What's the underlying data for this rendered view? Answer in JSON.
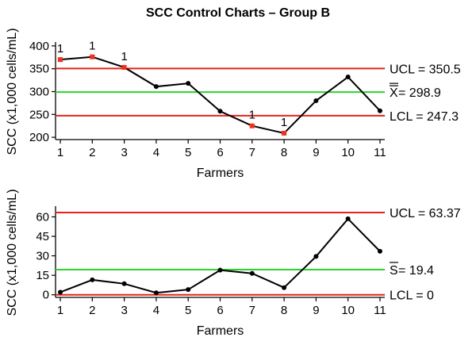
{
  "title": "SCC Control Charts – Group B",
  "chart_data": [
    {
      "type": "line",
      "name": "xbar-chart",
      "x": [
        1,
        2,
        3,
        4,
        5,
        6,
        7,
        8,
        9,
        10,
        11
      ],
      "values": [
        370,
        376,
        353,
        311,
        318,
        257,
        225,
        209,
        280,
        332,
        258
      ],
      "flags": [
        "1",
        "1",
        "1",
        "",
        "",
        "",
        "1",
        "1",
        "",
        "",
        ""
      ],
      "ylim": [
        195,
        405
      ],
      "yticks": [
        200,
        250,
        300,
        350,
        400
      ],
      "ylabel": "SCC (x1,000 cells/mL)",
      "xlabel": "Farmers",
      "limits": [
        {
          "key": "ucl",
          "value": 350.5,
          "color": "#e8231c",
          "label": "UCL = 350.5"
        },
        {
          "key": "center",
          "value": 298.9,
          "color": "#2fd32f",
          "symbol": "X",
          "label": " = 298.9"
        },
        {
          "key": "lcl",
          "value": 247.3,
          "color": "#e8231c",
          "label": "LCL = 247.3"
        }
      ],
      "line_color": "#000000",
      "point_color": "#000000",
      "flag_color": "#ff2a1a",
      "grid": false
    },
    {
      "type": "line",
      "name": "s-chart",
      "x": [
        1,
        2,
        3,
        4,
        5,
        6,
        7,
        8,
        9,
        10,
        11
      ],
      "values": [
        2,
        11.5,
        8.5,
        1.5,
        4,
        19,
        16.5,
        5.5,
        29.5,
        58.5,
        33.5
      ],
      "flags": [
        "",
        "",
        "",
        "",
        "",
        "",
        "",
        "",
        "",
        "",
        ""
      ],
      "ylim": [
        -2,
        67
      ],
      "yticks": [
        0,
        15,
        30,
        45,
        60
      ],
      "ylabel": "SCC (x1,000 cells/mL)",
      "xlabel": "Farmers",
      "limits": [
        {
          "key": "ucl",
          "value": 63.37,
          "color": "#e8231c",
          "label": "UCL = 63.37"
        },
        {
          "key": "center",
          "value": 19.4,
          "color": "#2fd32f",
          "symbol": "S",
          "label": " = 19.4"
        },
        {
          "key": "lcl",
          "value": 0,
          "color": "#e8231c",
          "label": "LCL = 0"
        }
      ],
      "line_color": "#000000",
      "point_color": "#000000",
      "flag_color": "#ff2a1a",
      "grid": false
    }
  ]
}
